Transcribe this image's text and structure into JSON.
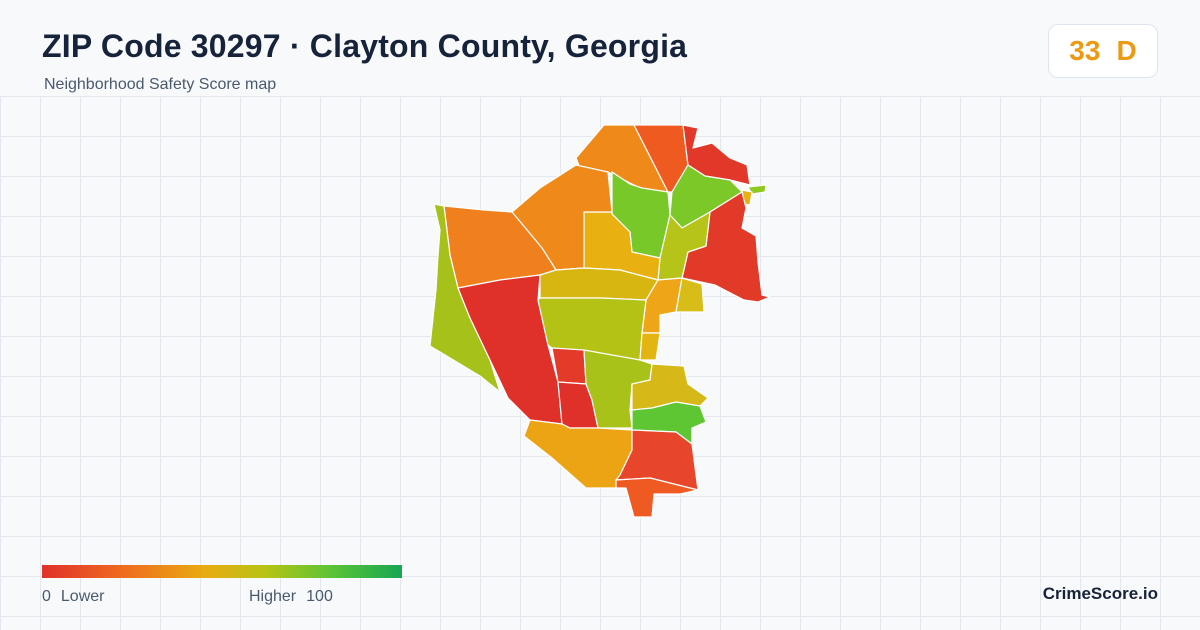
{
  "header": {
    "title": "ZIP Code 30297 · Clayton County, Georgia",
    "subtitle": "Neighborhood Safety Score map"
  },
  "score": {
    "value": "33",
    "grade": "D",
    "color": "#ec9a12"
  },
  "legend": {
    "low_value": "0",
    "low_label": "Lower",
    "high_label": "Higher",
    "high_value": "100",
    "colors": [
      "#e0312a",
      "#ef6a1f",
      "#e9aa12",
      "#b7c414",
      "#5cc434",
      "#17a653"
    ]
  },
  "brand": "CrimeScore.io"
}
